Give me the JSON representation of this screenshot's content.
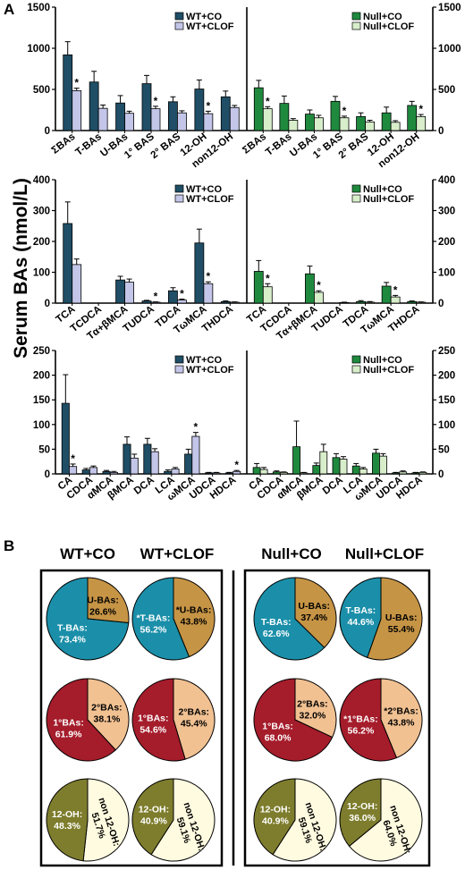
{
  "panel_labels": {
    "a": "A",
    "b": "B"
  },
  "y_axis_title": "Serum BAs (nmol/L)",
  "colors": {
    "wt_co": "#1f4e66",
    "wt_clof": "#c3c6e8",
    "null_co": "#1f8a3e",
    "null_clof": "#d8eecb",
    "taurine": "#1b8fa9",
    "unconjugated": "#c69445",
    "primary": "#a51c2b",
    "secondary": "#f1c192",
    "twelve_oh": "#7e7d2d",
    "non_twelve_oh": "#fffbe0"
  },
  "chart_data": [
    {
      "type": "bar",
      "panel": "A-row1",
      "ylim": [
        0,
        1500
      ],
      "yticks": [
        0,
        500,
        1000,
        1500
      ],
      "left": {
        "categories": [
          "ΣBAs",
          "T-BAs",
          "U-BAs",
          "1° BAS",
          "2° BAS",
          "12-OH",
          "non12-OH"
        ],
        "series": [
          {
            "name": "WT+CO",
            "values": [
              920,
              590,
              335,
              570,
              350,
              505,
              410
            ],
            "err": [
              160,
              130,
              90,
              100,
              60,
              110,
              70
            ]
          },
          {
            "name": "WT+CLOF",
            "values": [
              485,
              270,
              210,
              265,
              215,
              205,
              280
            ],
            "err": [
              30,
              40,
              25,
              30,
              25,
              30,
              25
            ]
          }
        ],
        "sig": [
          true,
          false,
          false,
          true,
          false,
          true,
          false
        ]
      },
      "right": {
        "categories": [
          "ΣBAs",
          "T-BAs",
          "U-BAs",
          "1° BAS",
          "2° BAS",
          "12-OH",
          "non12-OH"
        ],
        "series": [
          {
            "name": "Null+CO",
            "values": [
              520,
              330,
              200,
              355,
              170,
              215,
              305
            ],
            "err": [
              90,
              90,
              50,
              60,
              45,
              70,
              50
            ]
          },
          {
            "name": "Null+CLOF",
            "values": [
              265,
              125,
              155,
              155,
              105,
              100,
              170
            ],
            "err": [
              25,
              20,
              30,
              20,
              20,
              20,
              25
            ]
          }
        ],
        "sig": [
          true,
          false,
          false,
          true,
          false,
          false,
          true
        ]
      }
    },
    {
      "type": "bar",
      "panel": "A-row2",
      "ylim": [
        0,
        400
      ],
      "yticks": [
        0,
        100,
        200,
        300,
        400
      ],
      "left": {
        "categories": [
          "TCA",
          "TCDCA",
          "Tα+βMCA",
          "TUDCA",
          "TDCA",
          "TωMCA",
          "THDCA"
        ],
        "series": [
          {
            "name": "WT+CO",
            "values": [
              258,
              0,
              75,
              7,
              40,
              195,
              5
            ],
            "err": [
              70,
              0,
              12,
              2,
              10,
              45,
              2
            ]
          },
          {
            "name": "WT+CLOF",
            "values": [
              125,
              0,
              68,
              3,
              10,
              63,
              3
            ],
            "err": [
              18,
              0,
              10,
              1,
              3,
              6,
              1
            ]
          }
        ],
        "sig": [
          false,
          false,
          false,
          true,
          true,
          true,
          false
        ]
      },
      "right": {
        "categories": [
          "TCA",
          "TCDCA",
          "Tα+βMCA",
          "TUDCA",
          "TDCA",
          "TωMCA",
          "THDCA"
        ],
        "series": [
          {
            "name": "Null+CO",
            "values": [
              103,
              0,
              95,
              0,
              5,
              55,
              5
            ],
            "err": [
              35,
              0,
              25,
              0,
              3,
              12,
              2
            ]
          },
          {
            "name": "Null+CLOF",
            "values": [
              53,
              0,
              35,
              2,
              3,
              20,
              3
            ],
            "err": [
              10,
              0,
              5,
              1,
              2,
              5,
              1
            ]
          }
        ],
        "sig": [
          true,
          false,
          true,
          false,
          false,
          true,
          false
        ]
      }
    },
    {
      "type": "bar",
      "panel": "A-row3",
      "ylim": [
        0,
        250
      ],
      "yticks": [
        0,
        50,
        100,
        150,
        200,
        250
      ],
      "left": {
        "categories": [
          "CA",
          "CDCA",
          "αMCA",
          "βMCA",
          "DCA",
          "LCA",
          "ωMCA",
          "UDCA",
          "HDCA"
        ],
        "series": [
          {
            "name": "WT+CO",
            "values": [
              143,
              8,
              5,
              60,
              60,
              5,
              40,
              2,
              2
            ],
            "err": [
              58,
              3,
              2,
              15,
              12,
              3,
              10,
              1,
              1
            ]
          },
          {
            "name": "WT+CLOF",
            "values": [
              15,
              13,
              3,
              32,
              45,
              10,
              76,
              2,
              5
            ],
            "err": [
              5,
              3,
              2,
              8,
              6,
              3,
              8,
              1,
              2
            ]
          }
        ],
        "sig": [
          true,
          false,
          false,
          false,
          false,
          false,
          true,
          false,
          true
        ]
      },
      "right": {
        "categories": [
          "CA",
          "CDCA",
          "αMCA",
          "βMCA",
          "DCA",
          "LCA",
          "ωMCA",
          "UDCA",
          "HDCA"
        ],
        "series": [
          {
            "name": "Null+CO",
            "values": [
              13,
              4,
              55,
              17,
              33,
              16,
              42,
              2,
              2
            ],
            "err": [
              8,
              2,
              52,
              5,
              8,
              5,
              8,
              1,
              1
            ]
          },
          {
            "name": "Null+CLOF",
            "values": [
              9,
              3,
              2,
              45,
              30,
              10,
              36,
              4,
              3
            ],
            "err": [
              4,
              1,
              1,
              15,
              5,
              3,
              5,
              2,
              1
            ]
          }
        ],
        "sig": [
          false,
          false,
          false,
          false,
          false,
          false,
          false,
          false,
          false
        ]
      }
    },
    {
      "type": "pie",
      "panel": "B",
      "groups": [
        "WT+CO",
        "WT+CLOF",
        "Null+CO",
        "Null+CLOF"
      ],
      "rows": [
        {
          "slices": [
            "T-BAs",
            "U-BAs"
          ],
          "values": [
            [
              73.4,
              26.6
            ],
            [
              56.2,
              43.8
            ],
            [
              62.6,
              37.4
            ],
            [
              44.6,
              55.4
            ]
          ],
          "labels": [
            [
              "T-BAs:",
              "U-BAs:"
            ],
            [
              "*T-BAs:",
              "*U-BAs:"
            ],
            [
              "T-BAs:",
              "U-BAs:"
            ],
            [
              "T-BAs:",
              "U-BAs:"
            ]
          ],
          "texts": [
            [
              "73.4%",
              "26.6%"
            ],
            [
              "56.2%",
              "43.8%"
            ],
            [
              "62.6%",
              "37.4%"
            ],
            [
              "44.6%",
              "55.4%"
            ]
          ]
        },
        {
          "slices": [
            "1°BAs",
            "2°BAs"
          ],
          "values": [
            [
              61.9,
              38.1
            ],
            [
              54.6,
              45.4
            ],
            [
              68.0,
              32.0
            ],
            [
              56.2,
              43.8
            ]
          ],
          "labels": [
            [
              "1°BAs:",
              "2°BAs:"
            ],
            [
              "1°BAs:",
              "2°BAs:"
            ],
            [
              "1°BAs:",
              "2°BAs:"
            ],
            [
              "*1°BAs:",
              "*2°BAs:"
            ]
          ],
          "texts": [
            [
              "61.9%",
              "38.1%"
            ],
            [
              "54.6%",
              "45.4%"
            ],
            [
              "68.0%",
              "32.0%"
            ],
            [
              "56.2%",
              "43.8%"
            ]
          ]
        },
        {
          "slices": [
            "12-OH",
            "non 12-OH"
          ],
          "values": [
            [
              48.3,
              51.7
            ],
            [
              40.9,
              59.1
            ],
            [
              40.9,
              59.1
            ],
            [
              36.0,
              64.0
            ]
          ],
          "labels": [
            [
              "12-OH:",
              "non 12-OH:"
            ],
            [
              "12-OH:",
              "non 12-OH:"
            ],
            [
              "12-OH:",
              "non 12-OH:"
            ],
            [
              "12-OH:",
              "non 12-OH:"
            ]
          ],
          "texts": [
            [
              "48.3%",
              "51.7%"
            ],
            [
              "40.9%",
              "59.1%"
            ],
            [
              "40.9%",
              "59.1%"
            ],
            [
              "36.0%",
              "64.0%"
            ]
          ]
        }
      ]
    }
  ]
}
